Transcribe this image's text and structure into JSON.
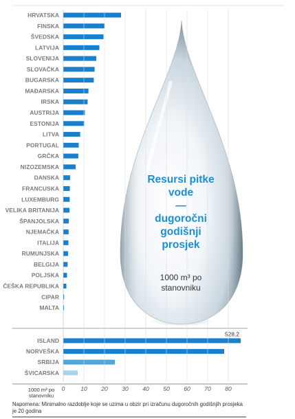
{
  "chart_data": {
    "type": "bar",
    "orientation": "horizontal",
    "unit_label": "1000 m³ po stanovniku",
    "xticks": [
      0,
      10,
      20,
      30,
      40,
      50,
      60,
      70,
      80
    ],
    "xlim": [
      0,
      88
    ],
    "grid": true,
    "groups": [
      {
        "categories": [
          "HRVATSKA",
          "FINSKA",
          "ŠVEDSKA",
          "LATVIJA",
          "SLOVENIJA",
          "SLOVAČKA",
          "BUGARSKA",
          "MAĐARSKA",
          "IRSKA",
          "AUSTRIJA",
          "ESTONIJA",
          "LITVA",
          "PORTUGAL",
          "GRČKA",
          "NIZOZEMSKA",
          "DANSKA",
          "FRANCUSKA",
          "LUXEMBURG",
          "VELIKA BRITANIJA",
          "ŠPANJOLSKA",
          "NJEMAČKA",
          "ITALIJA",
          "RUMUNJSKA",
          "BELGIJA",
          "POLJSKA",
          "ČEŠKA REPUBLIKA",
          "CIPAR",
          "MALTA"
        ],
        "values": [
          28,
          20,
          19.5,
          17.5,
          16,
          15.2,
          14.8,
          12.2,
          11.8,
          10.5,
          10.2,
          8.2,
          7.5,
          7.3,
          6.0,
          3.3,
          3.2,
          3.1,
          3.0,
          2.7,
          2.6,
          2.5,
          2.3,
          2.1,
          1.8,
          1.5,
          0.4,
          0.1
        ]
      },
      {
        "categories": [
          "ISLAND",
          "NORVEŠKA",
          "SRBIJA",
          "ŠVICARSKA"
        ],
        "values": [
          528.2,
          78,
          25,
          7
        ],
        "data_labels": [
          "528,2",
          "",
          "",
          ""
        ],
        "colors": [
          "#1a7fcc",
          "#1a7fcc",
          "#4fa6dc",
          "#a8d3ee"
        ]
      }
    ],
    "bar_color": "#1a7fcc"
  },
  "drop": {
    "title_lines": [
      "Resursi pitke",
      "vode",
      "—",
      "dugoročni",
      "godišnji",
      "prosjek"
    ],
    "subtitle_lines": [
      "1000 m³ po",
      "stanovniku"
    ]
  },
  "footnote": "Napomena: Minimalno razdoblje koje se uzima u obzir pri izračunu dugoročnih godišnjih prosjeka je 20 godina",
  "unit_lines": [
    "1000 m³ po",
    "stanovniku"
  ]
}
